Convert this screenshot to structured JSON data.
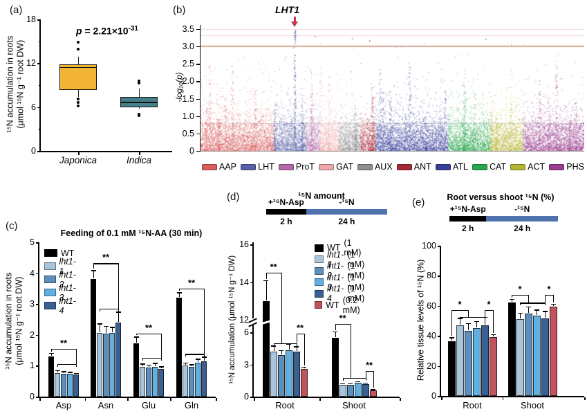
{
  "palette": {
    "wt": "#000000",
    "lht1_1": "#A9C5DB",
    "lht1_2": "#5D8FBC",
    "lht1_3": "#62B0E0",
    "lht1_4": "#3A5F92",
    "wt_low_dose": "#C0545C",
    "threshold_line": "#C97C63",
    "arrow": "#C1394A",
    "timeline_blue": "#4F72AD",
    "japonica_box": "#F2B535",
    "indica_box": "#44808B"
  },
  "chart_data": [
    {
      "id": "a",
      "type": "boxplot",
      "panel_label": "(a)",
      "p_value": {
        "symbol": "p",
        "eq": " = 2.21×10",
        "exp": "-31"
      },
      "ylabel": [
        "¹⁵N accumulation in roots",
        "(μmol ¹⁵N g⁻¹ root DW)"
      ],
      "ylim": [
        0,
        18
      ],
      "yticks": [
        "0",
        "6",
        "12",
        "18"
      ],
      "ytick_values": [
        0,
        6,
        12,
        18
      ],
      "minor_ticks": [
        3,
        9,
        15
      ],
      "categories": [
        "Japonica",
        "Indica"
      ],
      "boxes": [
        {
          "label": "Japonica",
          "color": "#F2B535",
          "q1": 8.3,
          "median": 11.5,
          "q3": 11.8,
          "whisker_low": 7.4,
          "whisker_high": 12.9,
          "outliers": [
            14.9,
            13.9,
            7.1,
            6.6,
            6.2
          ]
        },
        {
          "label": "Indica",
          "color": "#44808B",
          "q1": 6.0,
          "median": 6.7,
          "q3": 7.4,
          "whisker_low": 5.8,
          "whisker_high": 8.5,
          "outliers": [
            9.6,
            9.3,
            5.0,
            4.8
          ]
        }
      ]
    },
    {
      "id": "b",
      "type": "scatter",
      "panel_label": "(b)",
      "annotation": {
        "text": "LHT1",
        "x_frac": 0.245,
        "arrow_color": "#C1394A"
      },
      "ylabel": "-log₁₀(p)",
      "ylim": [
        0,
        3.62
      ],
      "yticks": [
        "0",
        "0.5",
        "1.0",
        "1.5",
        "2.0",
        "2.5",
        "3.0",
        "3.5"
      ],
      "ytick_values": [
        0,
        0.5,
        1.0,
        1.5,
        2.0,
        2.5,
        3.0,
        3.5
      ],
      "threshold": {
        "value": 3.02,
        "color": "#C97C63"
      },
      "gridlines": [
        {
          "value": 3.5,
          "color": "#EFD3D3"
        },
        {
          "value": 3.32,
          "color": "#EFD3D3"
        },
        {
          "value": 0.8,
          "color": "#DADADA"
        }
      ],
      "clusters": [
        {
          "name": "AAP",
          "color": "#D95F5F",
          "frac": 0.19
        },
        {
          "name": "LHT",
          "color": "#5560A5",
          "frac": 0.085
        },
        {
          "name": "ProT",
          "color": "#B469A8",
          "frac": 0.035
        },
        {
          "name": "GAT",
          "color": "#EFA8A8",
          "frac": 0.05
        },
        {
          "name": "AUX",
          "color": "#8E8E8E",
          "frac": 0.055
        },
        {
          "name": "ANT",
          "color": "#A52A35",
          "frac": 0.04
        },
        {
          "name": "ATL",
          "color": "#3A3F99",
          "frac": 0.19
        },
        {
          "name": "CAT",
          "color": "#27A84B",
          "frac": 0.11
        },
        {
          "name": "ACT",
          "color": "#B5B431",
          "frac": 0.085
        },
        {
          "name": "PHS",
          "color": "#9C3D90",
          "frac": 0.16
        }
      ]
    },
    {
      "id": "c",
      "type": "bar",
      "panel_label": "(c)",
      "title": "Feeding of 0.1 mM ¹⁵N-AA (30 min)",
      "ylabel": [
        "¹⁵N accumulation in roots",
        "(μmol ¹⁵N g⁻¹ root DW)"
      ],
      "ylim": [
        0,
        5
      ],
      "yticks": [
        "0",
        "1",
        "2",
        "3",
        "4",
        "5"
      ],
      "ytick_values": [
        0,
        1,
        2,
        3,
        4,
        5
      ],
      "categories": [
        "Asp",
        "Asn",
        "Glu",
        "Gln"
      ],
      "series": [
        {
          "name": "WT",
          "italic": false,
          "color": "#000000",
          "values": [
            1.3,
            3.82,
            1.72,
            3.2
          ],
          "errors": [
            0.12,
            0.28,
            0.22,
            0.18
          ]
        },
        {
          "name": "lht1-1",
          "italic": true,
          "color": "#A9C5DB",
          "values": [
            0.76,
            2.07,
            0.97,
            1.02
          ],
          "errors": [
            0.1,
            0.3,
            0.1,
            0.08
          ]
        },
        {
          "name": "lht1-2",
          "italic": true,
          "color": "#5D8FBC",
          "values": [
            0.75,
            2.04,
            0.95,
            0.97
          ],
          "errors": [
            0.07,
            0.25,
            0.08,
            0.08
          ]
        },
        {
          "name": "lht1-3",
          "italic": true,
          "color": "#62B0E0",
          "values": [
            0.75,
            2.06,
            0.97,
            1.1
          ],
          "errors": [
            0.05,
            0.2,
            0.12,
            0.13
          ]
        },
        {
          "name": "lht1-4",
          "italic": true,
          "color": "#3A5F92",
          "values": [
            0.72,
            2.39,
            0.9,
            1.15
          ],
          "errors": [
            0.05,
            0.36,
            0.08,
            0.14
          ]
        }
      ],
      "significance": [
        {
          "cat": 0,
          "type": "wt_group",
          "label": "**",
          "level": 1.55,
          "span": 1.05
        },
        {
          "cat": 1,
          "type": "wt_group",
          "label": "**",
          "level": 4.32,
          "span": 2.85
        },
        {
          "cat": 2,
          "type": "wt_group",
          "label": "**",
          "level": 2.05,
          "span": 1.25
        },
        {
          "cat": 3,
          "type": "wt_group",
          "label": "**",
          "level": 3.5,
          "span": 1.38
        }
      ]
    },
    {
      "id": "d",
      "type": "bar",
      "panel_label": "(d)",
      "title": "¹⁵N amount",
      "timeline": {
        "segments": [
          {
            "label": "+¹⁵N-Asp",
            "duration": "2 h",
            "color": "#000000",
            "frac": 0.33
          },
          {
            "label": "-¹⁵N",
            "duration": "24 h",
            "color": "#4F72AD",
            "frac": 0.67
          }
        ]
      },
      "ylabel": "¹⁵N accumulation (μmol ¹⁵N g⁻¹ DW)",
      "axis_break": true,
      "yticks_lower": [
        "0",
        "3",
        "6"
      ],
      "ytick_values_lower": [
        0,
        3,
        6
      ],
      "yticks_upper": [
        "12",
        "14",
        "16"
      ],
      "ytick_values_upper": [
        12,
        14,
        16
      ],
      "categories": [
        "Root",
        "Shoot"
      ],
      "series": [
        {
          "name": "WT",
          "dose": "(1 mM)",
          "italic": false,
          "color": "#000000",
          "values": [
            13.0,
            5.5
          ],
          "errors": [
            1.1,
            0.9
          ]
        },
        {
          "name": "lht1-1",
          "dose": "(1 mM)",
          "italic": true,
          "color": "#A9C5DB",
          "values": [
            4.2,
            1.1
          ],
          "errors": [
            0.55,
            0.15
          ]
        },
        {
          "name": "lht1-2",
          "dose": "(1 mM)",
          "italic": true,
          "color": "#5D8FBC",
          "values": [
            3.9,
            1.1
          ],
          "errors": [
            0.45,
            0.15
          ]
        },
        {
          "name": "lht1-3",
          "dose": "(1 mM)",
          "italic": true,
          "color": "#62B0E0",
          "values": [
            4.3,
            1.3
          ],
          "errors": [
            0.6,
            0.15
          ]
        },
        {
          "name": "lht1-4",
          "dose": "(1 mM)",
          "italic": true,
          "color": "#3A5F92",
          "values": [
            4.2,
            1.15
          ],
          "errors": [
            0.5,
            0.15
          ]
        },
        {
          "name": "WT",
          "dose": "(0.2 mM)",
          "italic": false,
          "color": "#C0545C",
          "values": [
            2.6,
            0.6
          ],
          "errors": [
            0.18,
            0.1
          ]
        }
      ],
      "significance": [
        {
          "cat": 0,
          "type": "wt_group",
          "label": "**",
          "level": 14.5,
          "span": 5.0
        },
        {
          "cat": 0,
          "type": "group_red",
          "label": "**",
          "level": 5.9,
          "span": 5.0
        },
        {
          "cat": 1,
          "type": "wt_group",
          "label": "**",
          "level": 10.0,
          "span": 1.74
        },
        {
          "cat": 1,
          "type": "group_red",
          "label": "**",
          "level": 2.4,
          "span": 1.74
        }
      ]
    },
    {
      "id": "e",
      "type": "bar",
      "panel_label": "(e)",
      "title": "Root versus shoot ¹⁵N (%)",
      "timeline": {
        "segments": [
          {
            "label": "+¹⁵N-Asp",
            "duration": "2 h",
            "color": "#000000",
            "frac": 0.34
          },
          {
            "label": "-¹⁵N",
            "duration": "24 h",
            "color": "#4F72AD",
            "frac": 0.66
          }
        ]
      },
      "ylabel": "Relative tissue levels of ¹⁵N (%)",
      "ylim": [
        0,
        100
      ],
      "yticks": [
        "0",
        "20",
        "40",
        "60",
        "80",
        "100"
      ],
      "ytick_values": [
        0,
        20,
        40,
        60,
        80,
        100
      ],
      "categories": [
        "Root",
        "Shoot"
      ],
      "series": [
        {
          "name": "WT",
          "dose": "(1 mM)",
          "italic": false,
          "color": "#000000",
          "values": [
            36.5,
            62.0
          ],
          "errors": [
            2.5,
            2.5
          ]
        },
        {
          "name": "lht1-1",
          "dose": "(1 mM)",
          "italic": true,
          "color": "#A9C5DB",
          "values": [
            47.0,
            51.0
          ],
          "errors": [
            5.0,
            4.5
          ]
        },
        {
          "name": "lht1-2",
          "dose": "(1 mM)",
          "italic": true,
          "color": "#5D8FBC",
          "values": [
            43.5,
            55.0
          ],
          "errors": [
            5.0,
            4.5
          ]
        },
        {
          "name": "lht1-3",
          "dose": "(1 mM)",
          "italic": true,
          "color": "#62B0E0",
          "values": [
            45.0,
            53.5
          ],
          "errors": [
            5.0,
            4.0
          ]
        },
        {
          "name": "lht1-4",
          "dose": "(1 mM)",
          "italic": true,
          "color": "#3A5F92",
          "values": [
            47.0,
            51.5
          ],
          "errors": [
            5.5,
            5.0
          ]
        },
        {
          "name": "WT",
          "dose": "(0.2 mM)",
          "italic": false,
          "color": "#C0545C",
          "values": [
            39.0,
            59.5
          ],
          "errors": [
            2.0,
            2.0
          ]
        }
      ],
      "significance": [
        {
          "cat": 0,
          "type": "wt_group",
          "label": "*",
          "level": 57.0,
          "span": 52.5
        },
        {
          "cat": 0,
          "type": "group_red",
          "label": "*",
          "level": 57.0,
          "span": 52.5
        },
        {
          "cat": 1,
          "type": "wt_group",
          "label": "*",
          "level": 67.5,
          "span": 62.0
        },
        {
          "cat": 1,
          "type": "group_red",
          "label": "*",
          "level": 67.5,
          "span": 62.0
        }
      ]
    }
  ]
}
